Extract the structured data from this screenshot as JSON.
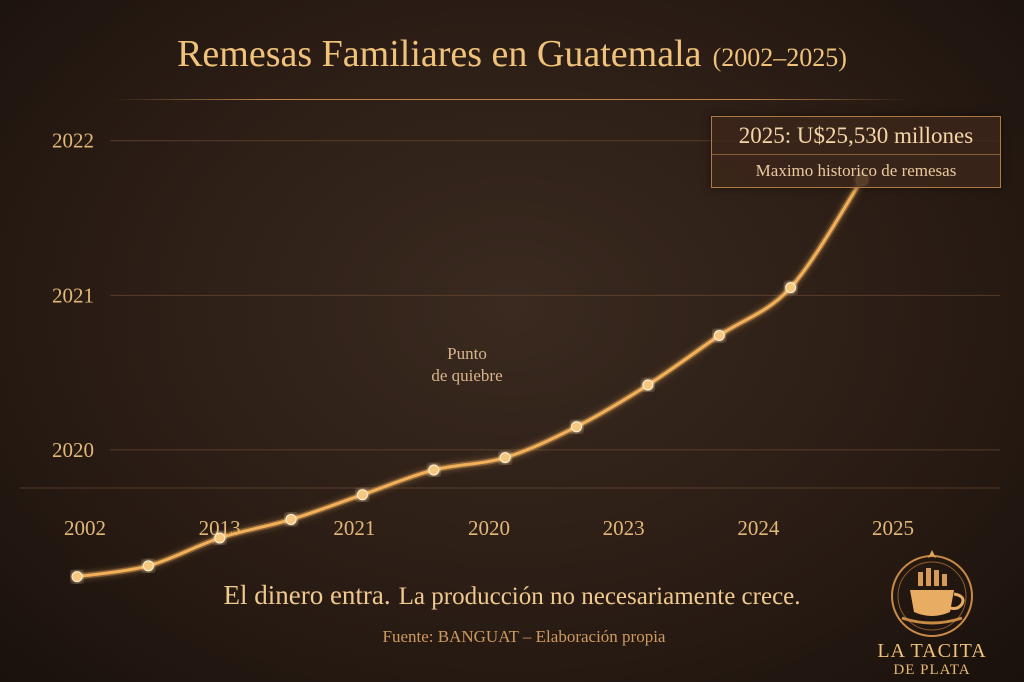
{
  "title": {
    "main": "Remesas Familiares en Guatemala",
    "range": "(2002–2025)"
  },
  "callout": {
    "headline": "2025: U$25,530 millones",
    "subline": "Maximo historico de remesas"
  },
  "annotation": {
    "line1": "Punto",
    "line2": "de quiebre"
  },
  "tagline": {
    "part1": "El dinero entra.",
    "part2": "La producción no necesariamente crece."
  },
  "source": "Fuente: BANGUAT – Elaboración propia",
  "logo": {
    "name": "LA TACITA",
    "sub": "DE PLATA"
  },
  "colors": {
    "line": "#f2b05a",
    "point": "#f6c77e",
    "grid": "#6a4a33",
    "accent": "#f0c27a"
  },
  "chart_data": {
    "type": "line",
    "title": "Remesas Familiares en Guatemala (2002–2025)",
    "xlabel": "",
    "ylabel": "",
    "x_tick_labels": [
      "2002",
      "2013",
      "2021",
      "2020",
      "2023",
      "2024",
      "2025"
    ],
    "y_tick_labels": [
      "2020",
      "2021",
      "2022"
    ],
    "ylim": [
      2019.1,
      2022.6
    ],
    "grid": "horizontal",
    "points": [
      2019.18,
      2019.25,
      2019.43,
      2019.55,
      2019.71,
      2019.87,
      2019.95,
      2020.15,
      2020.42,
      2020.74,
      2021.05,
      2021.75
    ],
    "series_color": "#f2b05a"
  }
}
